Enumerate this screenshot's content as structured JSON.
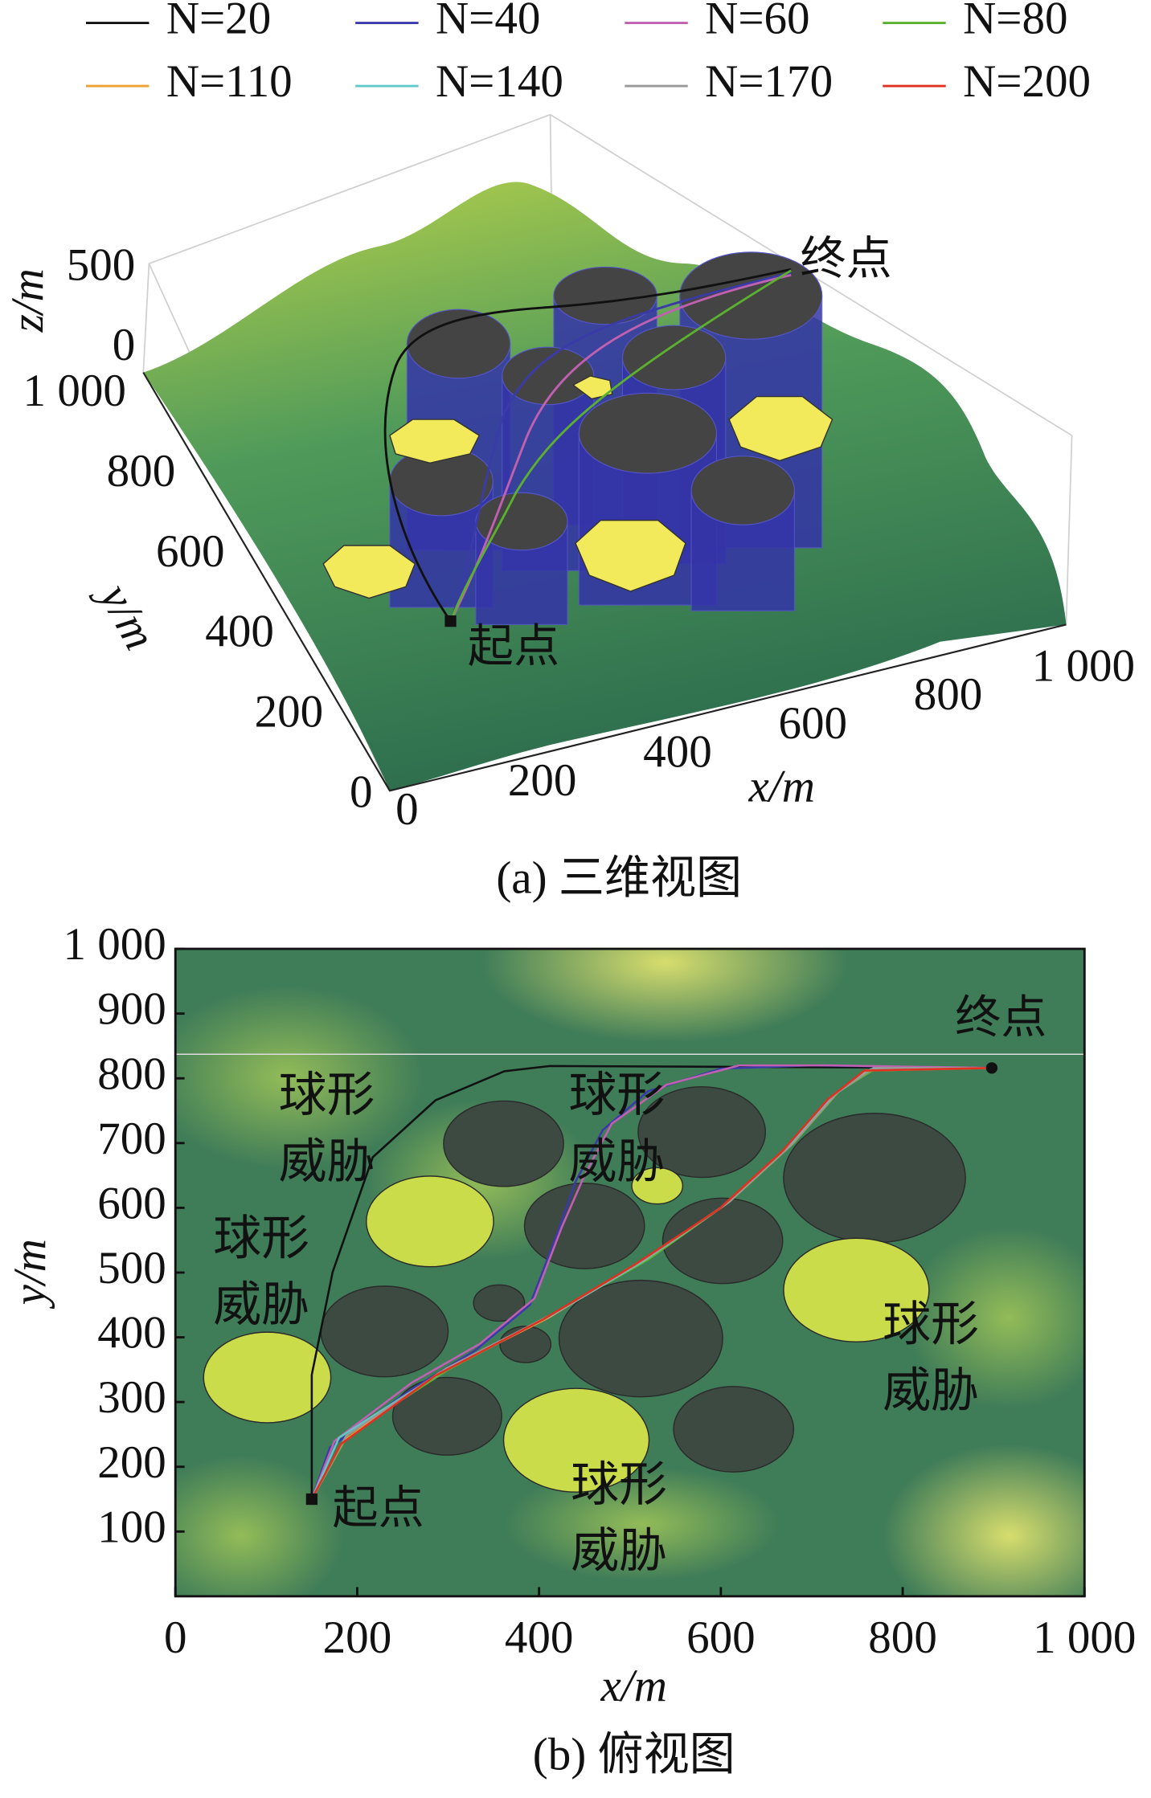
{
  "chart_data": [
    {
      "type": "surface3d",
      "caption": "(a) 三维视图",
      "xlabel": "x/m",
      "ylabel": "y/m",
      "zlabel": "z/m",
      "xlim": [
        0,
        1000
      ],
      "ylim": [
        0,
        1000
      ],
      "zlim": [
        0,
        500
      ],
      "xticks": [
        0,
        200,
        400,
        600,
        800,
        {
          "value": 1000,
          "label": "1 000"
        }
      ],
      "yticks": [
        0,
        200,
        400,
        600,
        800,
        {
          "value": 1000,
          "label": "1 000"
        }
      ],
      "zticks": [
        0,
        500
      ],
      "annotations": [
        "起点",
        "终点"
      ]
    },
    {
      "type": "line",
      "caption": "(b) 俯视图",
      "xlabel": "x/m",
      "ylabel": "y/m",
      "xlim": [
        0,
        1000
      ],
      "ylim": [
        0,
        1000
      ],
      "xticks": [
        0,
        200,
        400,
        600,
        800,
        {
          "value": 1000,
          "label": "1 000"
        }
      ],
      "yticks": [
        100,
        200,
        300,
        400,
        500,
        600,
        700,
        800,
        900,
        {
          "value": 1000,
          "label": "1 000"
        }
      ],
      "start": {
        "label": "起点",
        "x": 150,
        "y": 150
      },
      "end": {
        "label": "终点",
        "x": 898,
        "y": 816
      },
      "threat_labels": [
        [
          "球形",
          "威胁"
        ],
        [
          "球形",
          "威胁"
        ],
        [
          "球形",
          "威胁"
        ],
        [
          "球形",
          "威胁"
        ],
        [
          "球形",
          "威胁"
        ]
      ],
      "obstacles": [
        {
          "x": 361,
          "y": 699,
          "r": 66
        },
        {
          "x": 579,
          "y": 717,
          "r": 70
        },
        {
          "x": 450,
          "y": 572,
          "r": 66
        },
        {
          "x": 602,
          "y": 549,
          "r": 66
        },
        {
          "x": 769,
          "y": 646,
          "r": 100
        },
        {
          "x": 512,
          "y": 398,
          "r": 90
        },
        {
          "x": 230,
          "y": 409,
          "r": 70
        },
        {
          "x": 356,
          "y": 453,
          "r": 28
        },
        {
          "x": 385,
          "y": 389,
          "r": 28
        },
        {
          "x": 299,
          "y": 278,
          "r": 60
        },
        {
          "x": 614,
          "y": 258,
          "r": 66
        }
      ],
      "threats": [
        {
          "x": 280,
          "y": 579,
          "r": 70
        },
        {
          "x": 101,
          "y": 338,
          "r": 70
        },
        {
          "x": 441,
          "y": 241,
          "r": 80
        },
        {
          "x": 749,
          "y": 473,
          "r": 80
        },
        {
          "x": 530,
          "y": 634,
          "r": 28
        }
      ],
      "series": [
        {
          "name": "N=20",
          "color": "#111111",
          "x": [
            150,
            150,
            173,
            217,
            286,
            362,
            412,
            898
          ],
          "y": [
            150,
            342,
            501,
            678,
            766,
            811,
            819,
            816
          ]
        },
        {
          "name": "N=40",
          "color": "#3a3aa8",
          "x": [
            150,
            170,
            260,
            330,
            390,
            420,
            440,
            470,
            520,
            600,
            700,
            898
          ],
          "y": [
            150,
            230,
            320,
            380,
            450,
            560,
            640,
            720,
            780,
            815,
            820,
            816
          ]
        },
        {
          "name": "N=60",
          "color": "#c060b0",
          "x": [
            150,
            175,
            260,
            335,
            395,
            425,
            450,
            480,
            540,
            620,
            720,
            898
          ],
          "y": [
            150,
            240,
            330,
            390,
            460,
            570,
            650,
            730,
            790,
            820,
            820,
            816
          ]
        },
        {
          "name": "N=80",
          "color": "#5cb030",
          "x": [
            150,
            190,
            300,
            420,
            520,
            610,
            680,
            730,
            770,
            898
          ],
          "y": [
            150,
            250,
            350,
            440,
            520,
            610,
            700,
            780,
            815,
            816
          ]
        },
        {
          "name": "N=110",
          "color": "#f0a030",
          "x": [
            150,
            185,
            290,
            410,
            510,
            600,
            670,
            720,
            760,
            898
          ],
          "y": [
            150,
            240,
            345,
            430,
            515,
            600,
            690,
            770,
            812,
            816
          ]
        },
        {
          "name": "N=140",
          "color": "#60c8c8",
          "x": [
            150,
            180,
            295,
            415,
            515,
            605,
            675,
            725,
            765,
            898
          ],
          "y": [
            150,
            245,
            348,
            435,
            518,
            605,
            695,
            775,
            814,
            816
          ]
        },
        {
          "name": "N=170",
          "color": "#999999",
          "x": [
            150,
            188,
            298,
            418,
            518,
            608,
            678,
            728,
            768,
            898
          ],
          "y": [
            150,
            248,
            352,
            438,
            522,
            608,
            698,
            778,
            816,
            816
          ]
        },
        {
          "name": "N=200",
          "color": "#e03020",
          "x": [
            150,
            182,
            285,
            405,
            505,
            598,
            668,
            718,
            758,
            898
          ],
          "y": [
            150,
            235,
            340,
            428,
            512,
            598,
            688,
            768,
            812,
            816
          ]
        }
      ]
    }
  ]
}
